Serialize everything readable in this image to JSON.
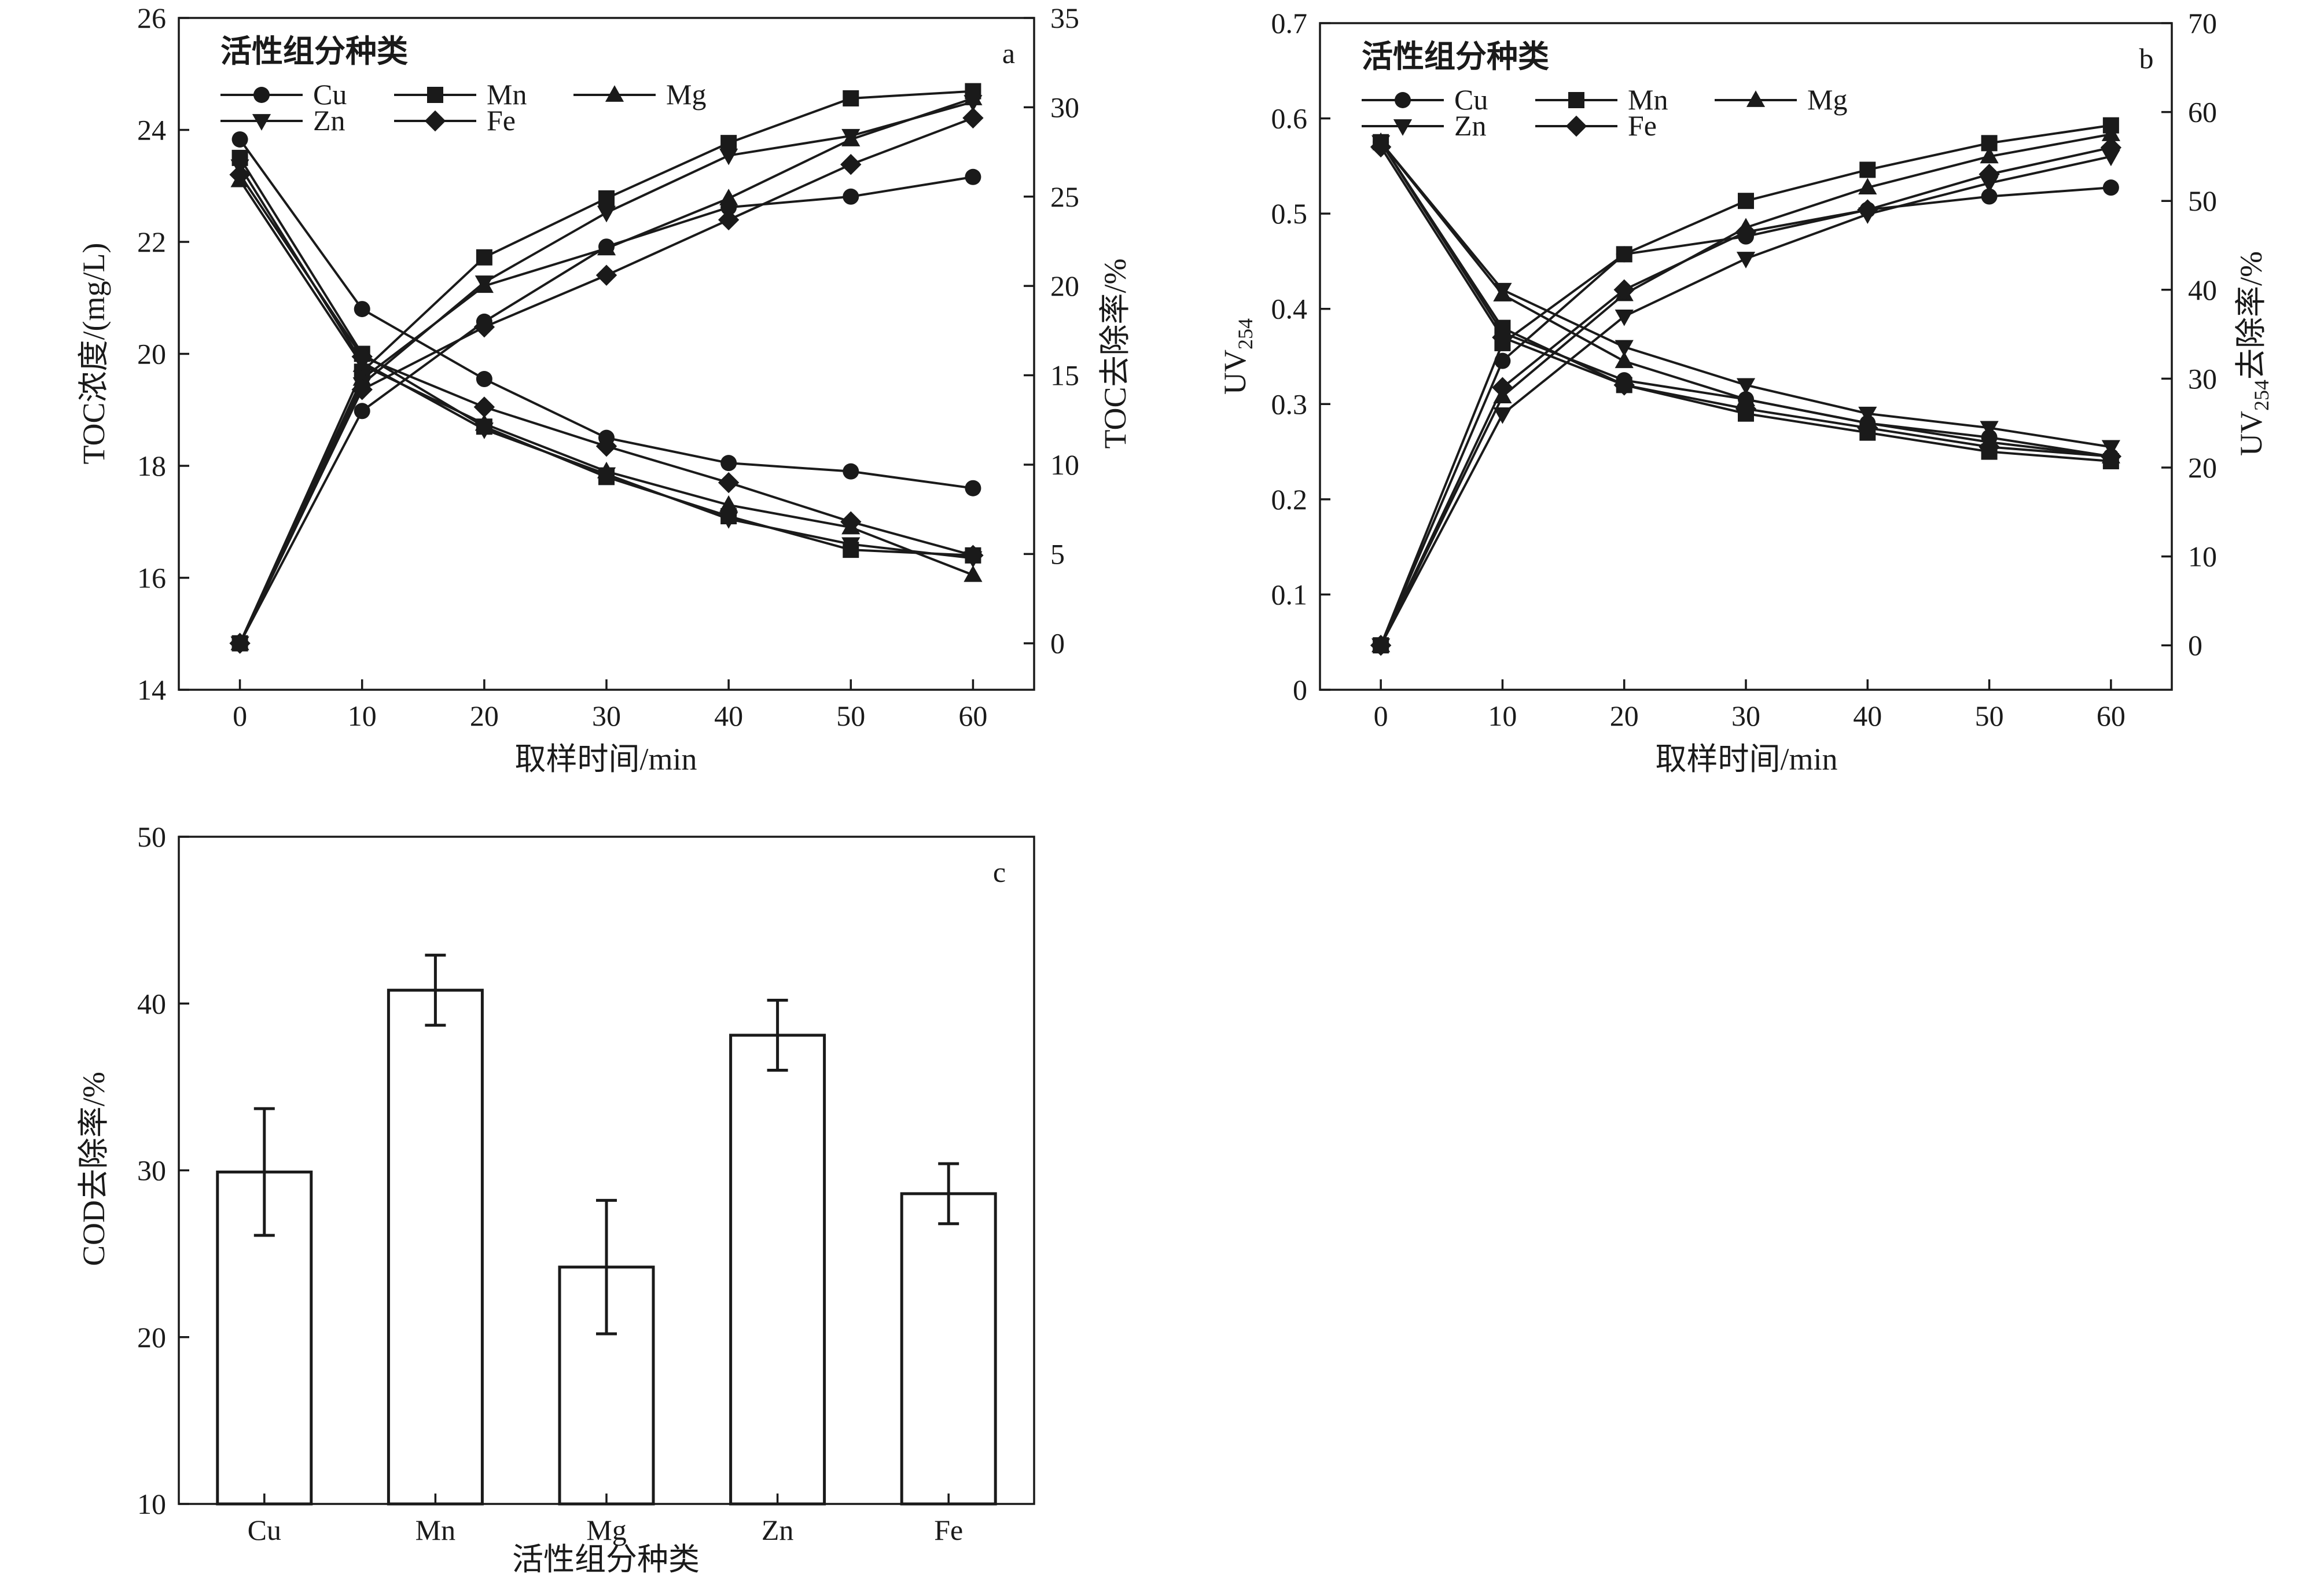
{
  "chart_data": [
    {
      "panel": "a",
      "type": "line",
      "legend_title": "活性组分种类",
      "legend_position": "top-left",
      "xlabel": "取样时间/min",
      "ylabel": "TOC浓度/(mg/L)",
      "ylabel_right": "TOC去除率/%",
      "x": [
        0,
        10,
        20,
        30,
        40,
        50,
        60
      ],
      "xlim": [
        -5,
        65
      ],
      "ylim": [
        14,
        26
      ],
      "ylim_right": [
        -2.6,
        35
      ],
      "yticks": [
        14,
        16,
        18,
        20,
        22,
        24,
        26
      ],
      "yticks_right": [
        0,
        5,
        10,
        15,
        20,
        25,
        30,
        35
      ],
      "series": [
        {
          "name": "Cu",
          "marker": "circle",
          "concentration": [
            23.83,
            20.8,
            19.55,
            18.5,
            18.05,
            17.9,
            17.6
          ],
          "removal": [
            0,
            13.0,
            18.0,
            22.2,
            24.4,
            25.0,
            26.1
          ]
        },
        {
          "name": "Mn",
          "marker": "square",
          "concentration": [
            23.5,
            20.0,
            18.7,
            17.8,
            17.1,
            16.5,
            16.4
          ],
          "removal": [
            0,
            15.2,
            21.6,
            24.9,
            28.0,
            30.5,
            30.9
          ]
        },
        {
          "name": "Mg",
          "marker": "triangle-up",
          "concentration": [
            23.1,
            19.8,
            18.75,
            17.9,
            17.3,
            16.9,
            16.05
          ],
          "removal": [
            0,
            14.8,
            20.0,
            22.1,
            24.9,
            28.2,
            30.5
          ]
        },
        {
          "name": "Zn",
          "marker": "triangle-down",
          "concentration": [
            23.35,
            19.85,
            18.65,
            17.85,
            17.05,
            16.6,
            16.35
          ],
          "removal": [
            0,
            14.5,
            20.2,
            24.1,
            27.3,
            28.4,
            30.3
          ]
        },
        {
          "name": "Fe",
          "marker": "diamond",
          "concentration": [
            23.2,
            19.95,
            19.05,
            18.35,
            17.7,
            17.0,
            16.4
          ],
          "removal": [
            0,
            14.2,
            17.7,
            20.6,
            23.7,
            26.8,
            29.4
          ]
        }
      ]
    },
    {
      "panel": "b",
      "type": "line",
      "legend_title": "活性组分种类",
      "legend_position": "top-left",
      "xlabel": "取样时间/min",
      "ylabel_main": "UV",
      "ylabel_sub": "254",
      "ylabel_right_pre": "UV",
      "ylabel_right_sub": "254",
      "ylabel_right_post": "去除率/%",
      "x": [
        0,
        10,
        20,
        30,
        40,
        50,
        60
      ],
      "xlim": [
        -5,
        65
      ],
      "ylim": [
        0,
        0.7
      ],
      "ylim_right": [
        -5,
        70
      ],
      "yticks": [
        0,
        0.1,
        0.2,
        0.3,
        0.4,
        0.5,
        0.6,
        0.7
      ],
      "yticks_right": [
        0,
        10,
        20,
        30,
        40,
        50,
        60,
        70
      ],
      "series": [
        {
          "name": "Cu",
          "marker": "circle",
          "uv254": [
            0.575,
            0.375,
            0.325,
            0.305,
            0.28,
            0.265,
            0.245
          ],
          "removal": [
            0,
            32.0,
            44.0,
            46.0,
            49.0,
            50.5,
            51.5
          ]
        },
        {
          "name": "Mn",
          "marker": "square",
          "uv254": [
            0.575,
            0.38,
            0.32,
            0.29,
            0.27,
            0.25,
            0.24
          ],
          "removal": [
            0,
            34.0,
            44.0,
            50.0,
            53.5,
            56.5,
            58.5
          ]
        },
        {
          "name": "Mg",
          "marker": "triangle-up",
          "uv254": [
            0.575,
            0.415,
            0.345,
            0.305,
            0.28,
            0.26,
            0.245
          ],
          "removal": [
            0,
            28.0,
            39.5,
            47.0,
            51.5,
            55.0,
            57.5
          ]
        },
        {
          "name": "Zn",
          "marker": "triangle-down",
          "uv254": [
            0.575,
            0.42,
            0.36,
            0.32,
            0.29,
            0.275,
            0.255
          ],
          "removal": [
            0,
            26.0,
            37.0,
            43.5,
            48.5,
            52.0,
            55.0
          ]
        },
        {
          "name": "Fe",
          "marker": "diamond",
          "uv254": [
            0.57,
            0.37,
            0.32,
            0.295,
            0.275,
            0.255,
            0.245
          ],
          "removal": [
            0,
            29.0,
            40.0,
            46.5,
            49.0,
            53.0,
            56.0
          ]
        }
      ]
    },
    {
      "panel": "c",
      "type": "bar",
      "xlabel": "活性组分种类",
      "ylabel": "COD去除率/%",
      "categories": [
        "Cu",
        "Mn",
        "Mg",
        "Zn",
        "Fe"
      ],
      "values": [
        29.9,
        40.8,
        24.2,
        38.1,
        28.6
      ],
      "errors": [
        3.8,
        2.1,
        4.0,
        2.1,
        1.8
      ],
      "ylim": [
        10,
        50
      ],
      "yticks": [
        10,
        20,
        30,
        40,
        50
      ]
    }
  ]
}
